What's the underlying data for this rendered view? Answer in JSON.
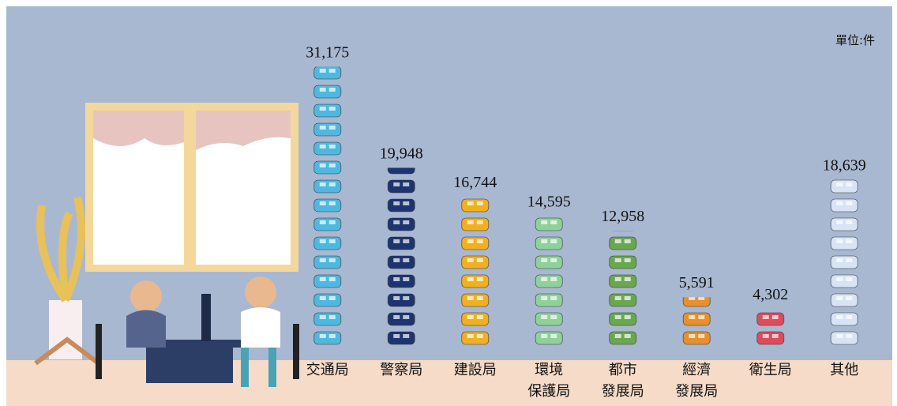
{
  "chart_data": {
    "type": "pictograph",
    "unit_label": "單位:件",
    "categories": [
      "交通局",
      "警察局",
      "建設局",
      "環境\n保護局",
      "都市\n發展局",
      "經濟\n發展局",
      "衛生局",
      "其他"
    ],
    "values": [
      31175,
      19948,
      16744,
      14595,
      12958,
      5591,
      4302,
      18639
    ],
    "value_labels": [
      "31,175",
      "19,948",
      "16,744",
      "14,595",
      "12,958",
      "5,591",
      "4,302",
      "18,639"
    ],
    "colors": [
      "#4fb8e0",
      "#1d3470",
      "#f0b020",
      "#8fd19a",
      "#6aa84f",
      "#e8902a",
      "#e04a5a",
      "#d6e4f6"
    ],
    "ylim": [
      0,
      32000
    ]
  }
}
